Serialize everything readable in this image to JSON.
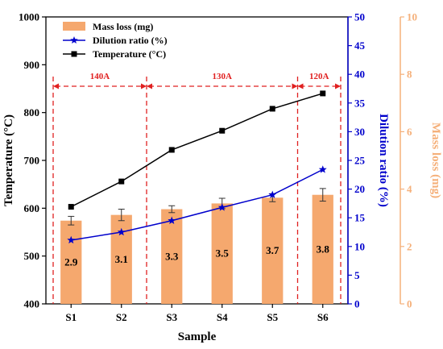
{
  "chart_data": {
    "type": "bar",
    "categories": [
      "S1",
      "S2",
      "S3",
      "S4",
      "S5",
      "S6"
    ],
    "xlabel": "Sample",
    "axes": {
      "temperature": {
        "label": "Temperature (°C)",
        "range": [
          400,
          1000
        ],
        "step": 100,
        "color": "#000000"
      },
      "dilution": {
        "label": "Dilution ratio (%)",
        "range": [
          0,
          50
        ],
        "step": 5,
        "color": "#0000cc"
      },
      "mass_loss": {
        "label": "Mass loss (mg)",
        "range": [
          0,
          10
        ],
        "step": 2,
        "color": "#f5b07a"
      }
    },
    "series": [
      {
        "name": "Mass loss (mg)",
        "kind": "bar",
        "axis": "mass_loss",
        "color": "#f5a86e",
        "values": [
          2.9,
          3.1,
          3.3,
          3.5,
          3.7,
          3.8
        ],
        "errors": [
          0.15,
          0.2,
          0.12,
          0.18,
          0.14,
          0.22
        ],
        "labels": [
          "2.9",
          "3.1",
          "3.3",
          "3.5",
          "3.7",
          "3.8"
        ]
      },
      {
        "name": "Dilution ratio (%)",
        "kind": "line",
        "marker": "star",
        "axis": "dilution",
        "color": "#0000cc",
        "values": [
          11.1,
          12.5,
          14.5,
          16.8,
          19.0,
          23.4
        ]
      },
      {
        "name": "Temperature (°C)",
        "kind": "line",
        "marker": "square",
        "axis": "temperature",
        "color": "#000000",
        "values": [
          603,
          656,
          722,
          762,
          808,
          840
        ]
      }
    ],
    "regions": [
      {
        "label": "140A",
        "from": "S1",
        "to": "S2",
        "color": "#e02020"
      },
      {
        "label": "130A",
        "from": "S3",
        "to": "S5",
        "color": "#e02020"
      },
      {
        "label": "120A",
        "from": "S6",
        "to": "S6",
        "color": "#e02020"
      }
    ],
    "legend": "top-left"
  }
}
